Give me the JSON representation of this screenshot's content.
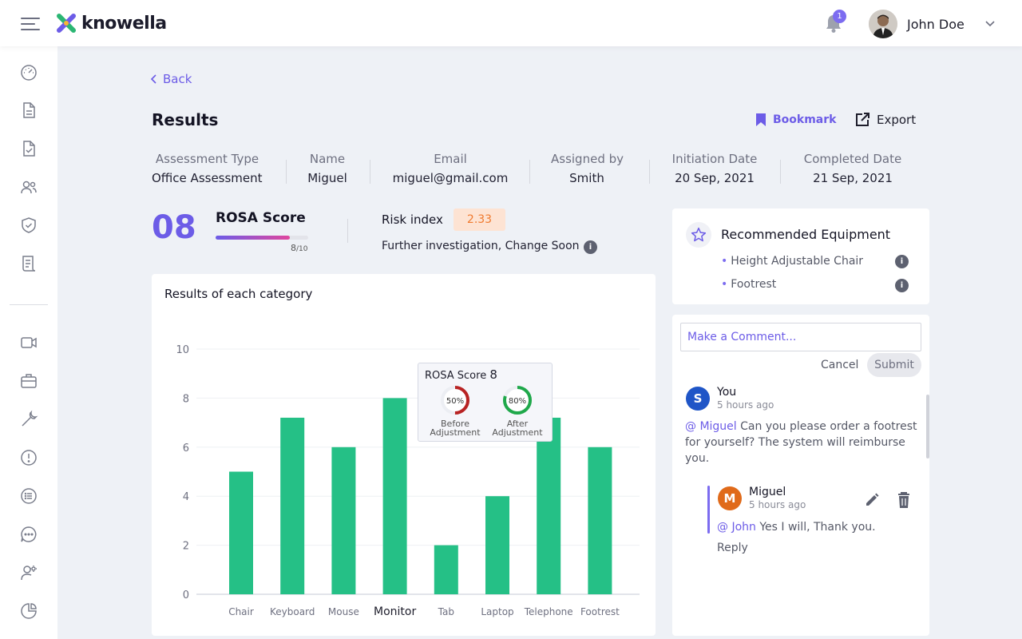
{
  "header": {
    "logo_text": "knowella",
    "notification_count": "1",
    "user_name": "John Doe"
  },
  "sidebar": {
    "items": [
      {
        "icon": "dashboard-icon"
      },
      {
        "icon": "document-icon"
      },
      {
        "icon": "checklist-icon"
      },
      {
        "icon": "users-icon"
      },
      {
        "icon": "shield-check-icon"
      },
      {
        "icon": "report-icon"
      },
      {
        "icon": "video-icon"
      },
      {
        "icon": "briefcase-icon"
      },
      {
        "icon": "wrench-icon"
      },
      {
        "icon": "alert-icon"
      },
      {
        "icon": "list-icon"
      },
      {
        "icon": "chat-icon"
      },
      {
        "icon": "user-settings-icon"
      },
      {
        "icon": "pie-chart-icon"
      }
    ]
  },
  "page": {
    "back_label": "Back",
    "title": "Results",
    "bookmark_label": "Bookmark",
    "export_label": "Export"
  },
  "assessment_info": [
    {
      "label": "Assessment Type",
      "value": "Office Assessment"
    },
    {
      "label": "Name",
      "value": "Miguel"
    },
    {
      "label": "Email",
      "value": "miguel@gmail.com"
    },
    {
      "label": "Assigned by",
      "value": "Smith"
    },
    {
      "label": "Initiation Date",
      "value": "20 Sep, 2021"
    },
    {
      "label": "Completed Date",
      "value": "21 Sep, 2021"
    }
  ],
  "score": {
    "big_value": "08",
    "label": "ROSA Score",
    "value": 8,
    "max": 10,
    "fraction_num": "8",
    "fraction_den": "/10",
    "risk_label": "Risk index",
    "risk_value": "2.33",
    "risk_note": "Further investigation, Change Soon"
  },
  "chart_data": {
    "type": "bar",
    "title": "Results of each category",
    "categories": [
      "Chair",
      "Keyboard",
      "Mouse",
      "Monitor",
      "Tab",
      "Laptop",
      "Telephone",
      "Footrest"
    ],
    "values": [
      5,
      7.2,
      6,
      8,
      2,
      4,
      7.2,
      6
    ],
    "ylim": [
      0,
      10
    ],
    "yticks": [
      0,
      2,
      4,
      6,
      8,
      10
    ],
    "highlight_category": "Monitor",
    "bar_color": "#25c086",
    "grid": true,
    "tooltip": {
      "title": "ROSA Score",
      "score": "8",
      "before_pct": "50%",
      "before_value": 50,
      "before_label_1": "Before",
      "before_label_2": "Adjustment",
      "after_pct": "80%",
      "after_value": 80,
      "after_label_1": "After",
      "after_label_2": "Adjustment"
    }
  },
  "recommended": {
    "title": "Recommended Equipment",
    "items": [
      "Height Adjustable Chair",
      "Footrest"
    ]
  },
  "comments": {
    "placeholder": "Make a Comment...",
    "cancel_label": "Cancel",
    "submit_label": "Submit",
    "thread": [
      {
        "initial": "S",
        "name": "You",
        "time": "5 hours ago",
        "mention": "@ Miguel",
        "text_line1": " Can you please order a footrest",
        "text_line2": "for yourself? The system will reimburse",
        "text_line3": "you."
      }
    ],
    "reply": {
      "initial": "M",
      "name": "Miguel",
      "time": "5 hours ago",
      "mention": "@ John",
      "text": " Yes I will, Thank you.",
      "reply_label": "Reply"
    }
  },
  "colors": {
    "accent": "#6c5ce7",
    "bar": "#25c086",
    "risk_text": "#f07a2f",
    "avatar_you": "#1f55c7",
    "avatar_miguel": "#e06a1a"
  }
}
